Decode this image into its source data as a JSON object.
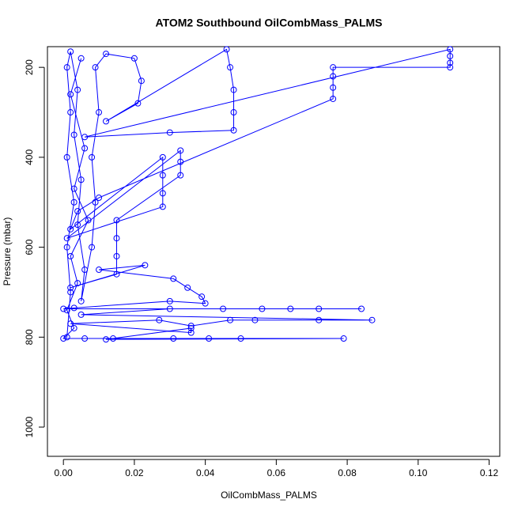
{
  "chart_data": {
    "type": "line",
    "title": "ATOM2 Southbound OilCombMass_PALMS",
    "x_label": "OilCombMass_PALMS",
    "y_label": "Pressure (mbar)",
    "series": [
      {
        "color": "#0000ff",
        "x": [
          0.001,
          0.002,
          0.001,
          0.003,
          0.001,
          0.002,
          0.001,
          0.002,
          0.004,
          0.003,
          0.005,
          0.004,
          0.006,
          0.005,
          0.008,
          0.009,
          0.008,
          0.01,
          0.009,
          0.012,
          0.02,
          0.022,
          0.021,
          0.012,
          0.046,
          0.047,
          0.048,
          0.048,
          0.048,
          0.03,
          0.006,
          0.109,
          0.109,
          0.109,
          0.109,
          0.076,
          0.076,
          0.076,
          0.076,
          0.01,
          0.004,
          0.002,
          0.028,
          0.028,
          0.028,
          0.028,
          0.001,
          0.033,
          0.033,
          0.033,
          0.015,
          0.015,
          0.015,
          0.015,
          0.002,
          0.023,
          0.01,
          0.031,
          0.035,
          0.039,
          0.04,
          0.03,
          0.003,
          0.0,
          0.084,
          0.072,
          0.064,
          0.056,
          0.045,
          0.03,
          0.005,
          0.087,
          0.072,
          0.054,
          0.047,
          0.036,
          0.027,
          0.002,
          0.036,
          0.036,
          0.012,
          0.079,
          0.05,
          0.041,
          0.031,
          0.014,
          0.006,
          0.0,
          0.003,
          0.001,
          0.004,
          0.002,
          0.007,
          0.003,
          0.006,
          0.002,
          0.005
        ],
        "values": [
          800,
          700,
          600,
          500,
          400,
          300,
          200,
          165,
          250,
          350,
          450,
          550,
          650,
          720,
          600,
          500,
          400,
          300,
          200,
          170,
          180,
          230,
          280,
          320,
          160,
          200,
          250,
          300,
          340,
          345,
          355,
          160,
          175,
          190,
          200,
          200,
          220,
          245,
          270,
          490,
          520,
          560,
          400,
          440,
          480,
          510,
          580,
          385,
          410,
          440,
          540,
          580,
          620,
          660,
          690,
          640,
          650,
          670,
          690,
          710,
          725,
          720,
          735,
          737,
          737,
          737,
          737,
          737,
          737,
          737,
          750,
          762,
          762,
          762,
          762,
          775,
          762,
          770,
          790,
          780,
          805,
          803,
          803,
          803,
          803,
          803,
          803,
          803,
          780,
          740,
          680,
          620,
          540,
          470,
          380,
          260,
          180
        ]
      }
    ],
    "xlim": [
      -0.0045,
      0.123
    ],
    "ylim": [
      1065,
      154
    ],
    "xticks": [
      {
        "value": 0,
        "label": "0.00"
      },
      {
        "value": 0.02,
        "label": "0.02"
      },
      {
        "value": 0.04,
        "label": "0.04"
      },
      {
        "value": 0.06,
        "label": "0.06"
      },
      {
        "value": 0.08,
        "label": "0.08"
      },
      {
        "value": 0.1,
        "label": "0.10"
      },
      {
        "value": 0.12,
        "label": "0.12"
      }
    ],
    "yticks": [
      200,
      400,
      600,
      800,
      1000
    ]
  }
}
